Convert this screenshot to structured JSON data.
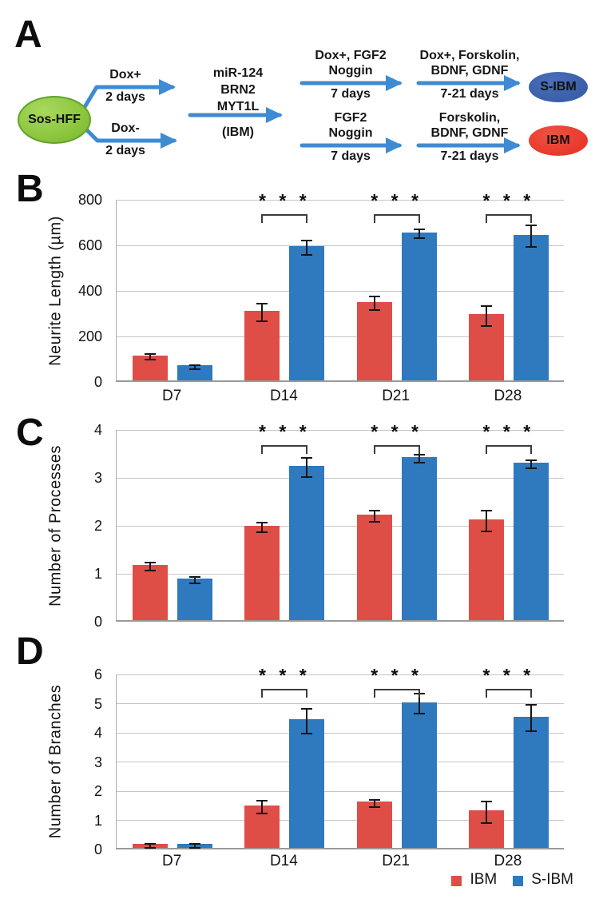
{
  "panelA": {
    "label": "A",
    "arrow_color": "#3E8BD3",
    "source": {
      "label": "Sos-HFF",
      "fill": "#8CC63E"
    },
    "branch_top": {
      "line1": "Dox+",
      "line2": "2 days"
    },
    "branch_bottom": {
      "line1": "Dox-",
      "line2": "2 days"
    },
    "factors": {
      "line1": "miR-124",
      "line2": "BRN2",
      "line3": "MYT1L",
      "note": "(IBM)"
    },
    "top_step1": {
      "line1": "Dox+, FGF2",
      "line2": "Noggin",
      "duration": "7 days"
    },
    "top_step2": {
      "line1": "Dox+, Forskolin,",
      "line2": "BDNF, GDNF",
      "duration": "7-21 days"
    },
    "top_result": {
      "label": "S-IBM",
      "fill": "#3A5FA9"
    },
    "bottom_step1": {
      "line1": "FGF2",
      "line2": "Noggin",
      "duration": "7 days"
    },
    "bottom_step2": {
      "line1": "Forskolin,",
      "line2": "BDNF, GDNF",
      "duration": "7-21 days"
    },
    "bottom_result": {
      "label": "IBM",
      "fill": "#E8392C"
    }
  },
  "chart_data": [
    {
      "type": "bar",
      "panel": "B",
      "categories": [
        "D7",
        "D14",
        "D21",
        "D28"
      ],
      "series": [
        {
          "name": "IBM",
          "color": "#DF4D47",
          "values": [
            110,
            305,
            345,
            290
          ],
          "errors": [
            8,
            35,
            27,
            40
          ]
        },
        {
          "name": "S-IBM",
          "color": "#2F79BE",
          "values": [
            65,
            590,
            650,
            640
          ],
          "errors": [
            4,
            28,
            15,
            45
          ]
        }
      ],
      "title": "",
      "xlabel": "",
      "ylabel": "Neurite Length (µm)",
      "ylim": [
        0,
        800
      ],
      "yticks": [
        0,
        200,
        400,
        600,
        800
      ],
      "sig": [
        "",
        "* * *",
        "* * *",
        "* * *"
      ],
      "xlabels_visible": true,
      "grid": true
    },
    {
      "type": "bar",
      "panel": "C",
      "categories": [
        "D7",
        "D14",
        "D21",
        "D28"
      ],
      "series": [
        {
          "name": "IBM",
          "color": "#DF4D47",
          "values": [
            1.15,
            1.97,
            2.2,
            2.1
          ],
          "errors": [
            0.06,
            0.08,
            0.1,
            0.2
          ]
        },
        {
          "name": "S-IBM",
          "color": "#2F79BE",
          "values": [
            0.87,
            3.22,
            3.4,
            3.28
          ],
          "errors": [
            0.05,
            0.18,
            0.07,
            0.07
          ]
        }
      ],
      "title": "",
      "xlabel": "",
      "ylabel": "Number of Processes",
      "ylim": [
        0,
        4
      ],
      "yticks": [
        0,
        1,
        2,
        3,
        4
      ],
      "sig": [
        "",
        "* * *",
        "* * *",
        "* * *"
      ],
      "xlabels_visible": false,
      "grid": true
    },
    {
      "type": "bar",
      "panel": "D",
      "categories": [
        "D7",
        "D14",
        "D21",
        "D28"
      ],
      "series": [
        {
          "name": "IBM",
          "color": "#DF4D47",
          "values": [
            0.13,
            1.45,
            1.58,
            1.28
          ],
          "errors": [
            0.04,
            0.2,
            0.1,
            0.35
          ]
        },
        {
          "name": "S-IBM",
          "color": "#2F79BE",
          "values": [
            0.13,
            4.4,
            5.0,
            4.5
          ],
          "errors": [
            0.04,
            0.4,
            0.32,
            0.42
          ]
        }
      ],
      "title": "",
      "xlabel": "",
      "ylabel": "Number of Branches",
      "ylim": [
        0,
        6
      ],
      "yticks": [
        0,
        1,
        2,
        3,
        4,
        5,
        6
      ],
      "sig": [
        "",
        "* * *",
        "* * *",
        "* * *"
      ],
      "xlabels_visible": true,
      "grid": true,
      "legend_position": "bottom-right"
    }
  ]
}
